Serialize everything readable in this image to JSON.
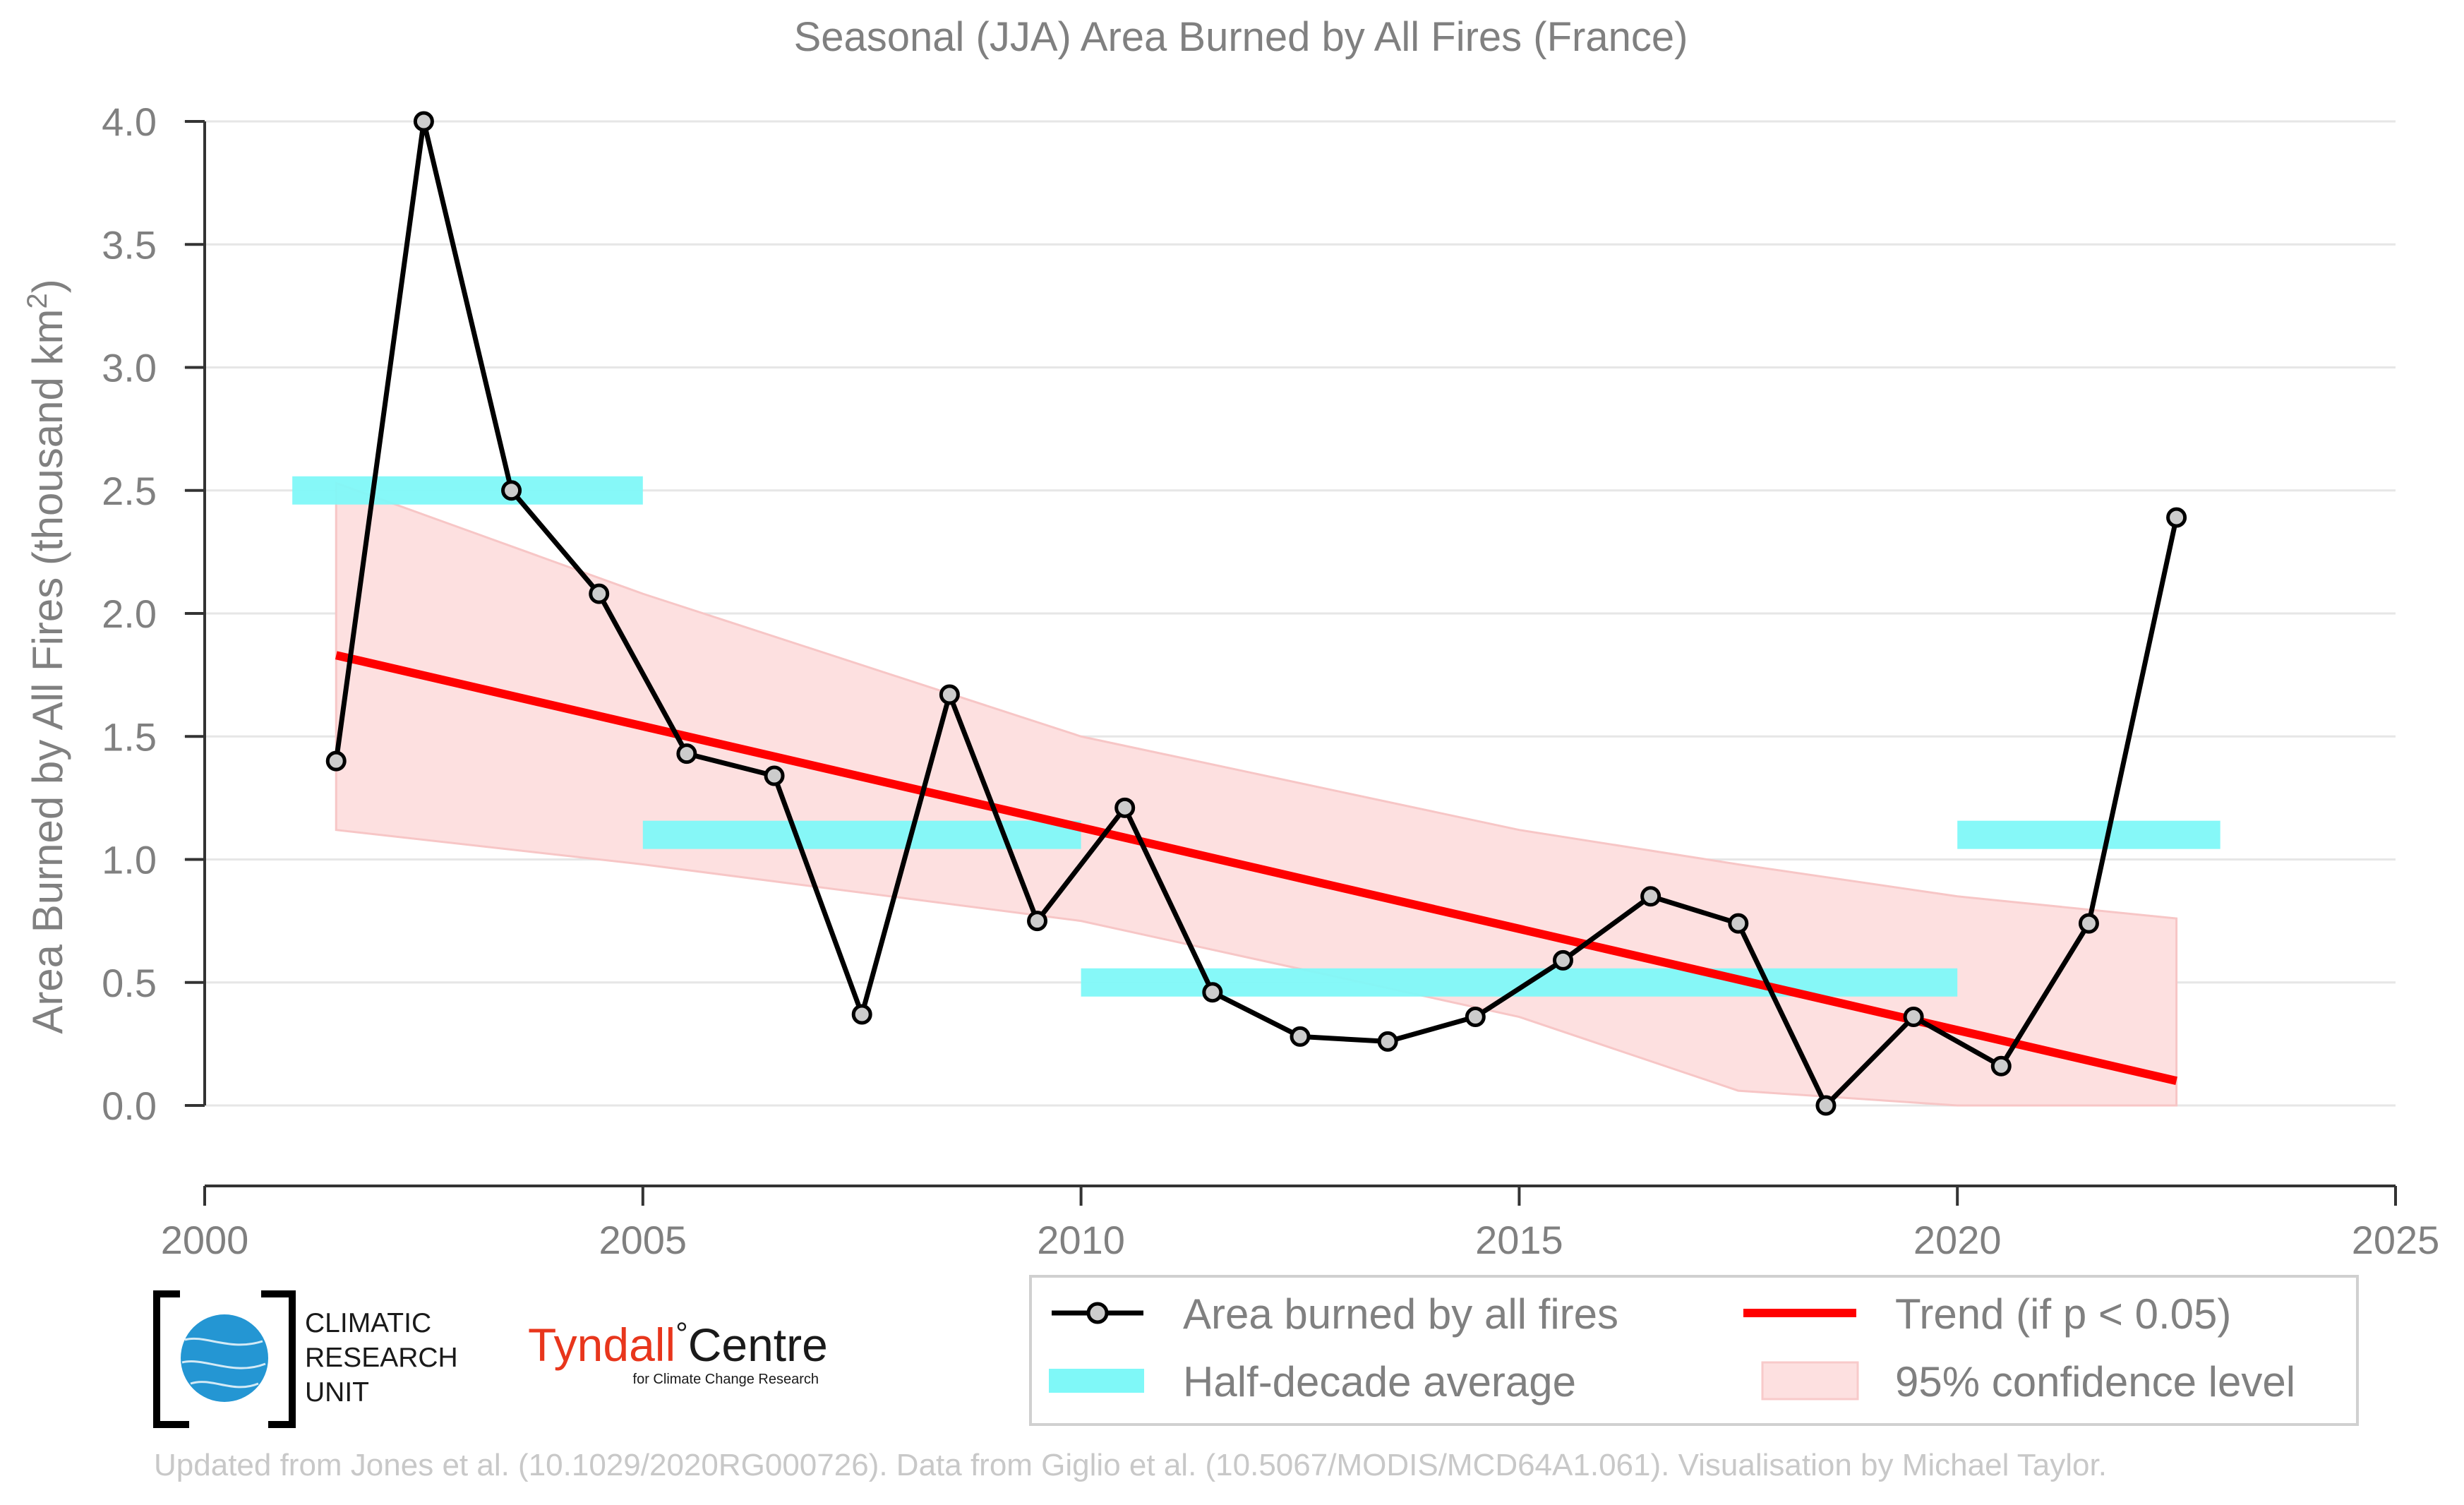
{
  "chart_data": {
    "type": "line",
    "title": "Seasonal (JJA) Area Burned by All Fires (France)",
    "ylabel": "Area Burned by All Fires (thousand km",
    "ylabel_superscript": "2",
    "ylabel_close": ")",
    "xlabel": "",
    "xlim": [
      2000,
      2025
    ],
    "ylim": [
      -0.3,
      4.0
    ],
    "grid": true,
    "x_ticks": [
      2000,
      2005,
      2010,
      2015,
      2020,
      2025
    ],
    "y_ticks": [
      0.0,
      0.5,
      1.0,
      1.5,
      2.0,
      2.5,
      3.0,
      3.5,
      4.0
    ],
    "y_tick_labels": [
      "0.0",
      "0.5",
      "1.0",
      "1.5",
      "2.0",
      "2.5",
      "3.0",
      "3.5",
      "4.0"
    ],
    "series": [
      {
        "name": "Area burned by all fires",
        "color": "#000000",
        "x": [
          2001.5,
          2002.5,
          2003.5,
          2004.5,
          2005.5,
          2006.5,
          2007.5,
          2008.5,
          2009.5,
          2010.5,
          2011.5,
          2012.5,
          2013.5,
          2014.5,
          2015.5,
          2016.5,
          2017.5,
          2018.5,
          2019.5,
          2020.5,
          2021.5,
          2022.5
        ],
        "y": [
          1.4,
          4.0,
          2.5,
          2.08,
          1.43,
          1.34,
          0.37,
          1.67,
          0.75,
          1.21,
          0.46,
          0.28,
          0.26,
          0.36,
          0.59,
          0.85,
          0.74,
          0.0,
          0.36,
          0.16,
          0.74,
          2.39
        ]
      }
    ],
    "half_decade_average": {
      "name": "Half-decade average",
      "color": "#7ff8f8",
      "segments": [
        {
          "x0": 2001.0,
          "x1": 2005.0,
          "y": 2.5
        },
        {
          "x0": 2005.0,
          "x1": 2010.0,
          "y": 1.1
        },
        {
          "x0": 2010.0,
          "x1": 2020.0,
          "y": 0.5
        },
        {
          "x0": 2020.0,
          "x1": 2023.0,
          "y": 1.1
        }
      ]
    },
    "trend": {
      "name": "Trend (if p < 0.05)",
      "color": "#ff0000",
      "x": [
        2001.5,
        2022.5
      ],
      "y": [
        1.83,
        0.1
      ]
    },
    "confidence_band": {
      "name": "95% confidence level",
      "color": "#fde0e0",
      "x": [
        2001.5,
        2005.0,
        2010.0,
        2015.0,
        2017.5,
        2020.0,
        2022.5
      ],
      "upper": [
        2.53,
        2.08,
        1.5,
        1.12,
        0.98,
        0.85,
        0.76
      ],
      "lower": [
        1.12,
        0.98,
        0.75,
        0.36,
        0.06,
        0.0,
        0.0
      ]
    },
    "legend": {
      "placement": "bottom-right",
      "items": [
        "Area burned by all fires",
        "Trend (if p < 0.05)",
        "Half-decade average",
        "95% confidence level"
      ]
    }
  },
  "logos": {
    "cru_line1": "CLIMATIC",
    "cru_line2": "RESEARCH",
    "cru_line3": "UNIT",
    "tyndall_part1": "Tyndall",
    "tyndall_degree": "°",
    "tyndall_part2": "Centre",
    "tyndall_sub": "for Climate Change Research"
  },
  "footer": "Updated from Jones et al. (10.1029/2020RG000726). Data from Giglio et al. (10.5067/MODIS/MCD64A1.061). Visualisation by Michael Taylor."
}
